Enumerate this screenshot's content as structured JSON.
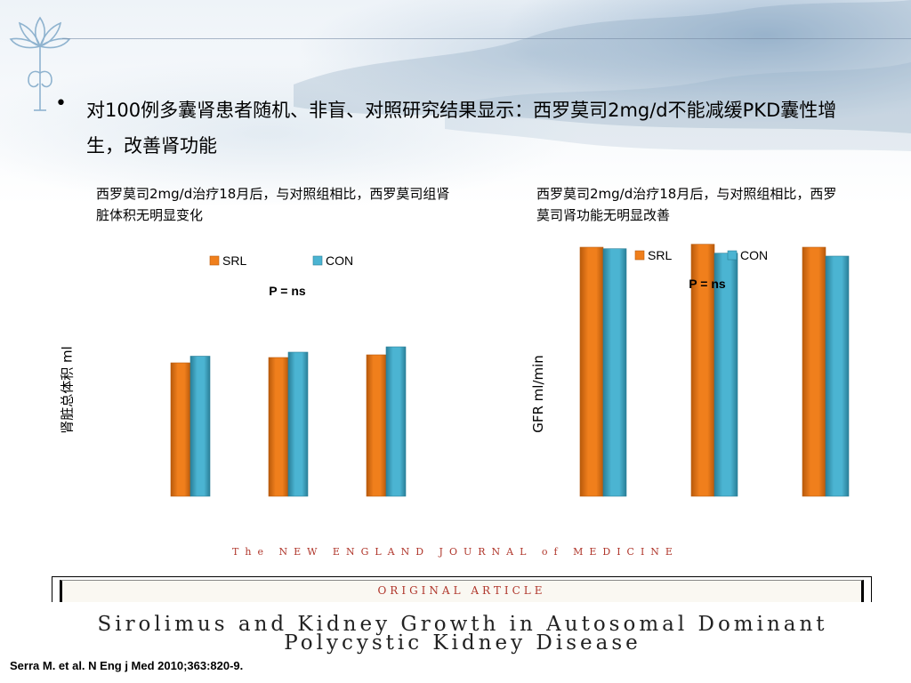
{
  "slide": {
    "bullet_text": "对100例多囊肾患者随机、非盲、对照研究结果显示：西罗莫司2mg/d不能减缓PKD囊性增生，改善肾功能",
    "left_caption": "西罗莫司2mg/d治疗18月后，与对照组相比，西罗莫司组肾脏体积无明显变化",
    "right_caption": "西罗莫司2mg/d治疗18月后，与对照组相比，西罗莫司肾功能无明显改善",
    "journal_name": "The NEW ENGLAND JOURNAL of MEDICINE",
    "article_type": "ORIGINAL ARTICLE",
    "paper_title": "Sirolimus and Kidney Growth in Autosomal Dominant Polycystic Kidney Disease",
    "citation": "Serra M. et  al. N Eng j Med  2010;363:820-9."
  },
  "colors": {
    "srl": "#f07f1c",
    "con": "#4bb4d2",
    "journal_red": "#b0372c"
  },
  "chart_data": [
    {
      "type": "bar",
      "series": [
        {
          "name": "SRL",
          "values": [
            1000,
            1040,
            1060
          ]
        },
        {
          "name": "CON",
          "values": [
            1050,
            1080,
            1120
          ]
        }
      ],
      "categories": [
        "",
        "",
        ""
      ],
      "ylabel": "肾脏总体积  ml",
      "annotation": "P = ns",
      "ylim": [
        0,
        1600
      ],
      "legend": "top-center",
      "grid": false
    },
    {
      "type": "bar",
      "series": [
        {
          "name": "SRL",
          "values": [
            84,
            85,
            84
          ]
        },
        {
          "name": "CON",
          "values": [
            83.5,
            82,
            81
          ]
        }
      ],
      "categories": [
        "",
        "",
        ""
      ],
      "ylabel": "GFR  ml/min",
      "annotation": "P = ns",
      "ylim": [
        0,
        90
      ],
      "legend": "top-center",
      "grid": false
    }
  ]
}
